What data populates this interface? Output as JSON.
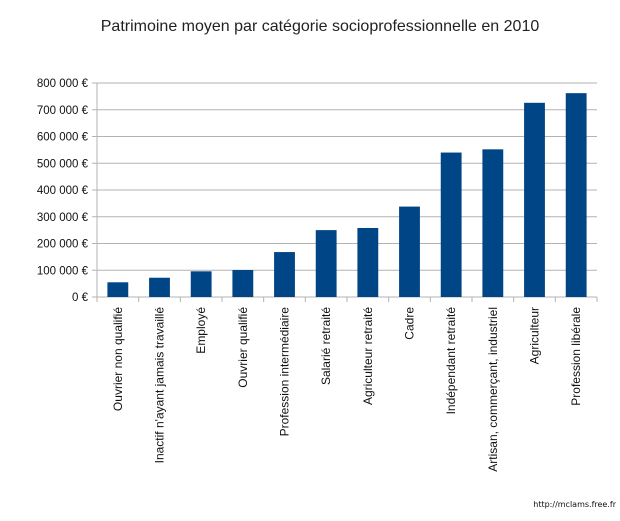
{
  "chart_data": {
    "type": "bar",
    "title": "Patrimoine moyen par catégorie socioprofessionnelle en 2010",
    "xlabel": "",
    "ylabel": "",
    "ylim": [
      0,
      800000
    ],
    "y_ticks": [
      "0 €",
      "100 000 €",
      "200 000 €",
      "300 000 €",
      "400 000 €",
      "500 000 €",
      "600 000 €",
      "700 000 €",
      "800 000 €"
    ],
    "grid": true,
    "legend": "none",
    "categories": [
      "Ouvrier non qualifié",
      "Inactif n'ayant jamais travaillé",
      "Employé",
      "Ouvrier qualifié",
      "Profession intermédiaire",
      "Salarié retraité",
      "Agriculteur retraité",
      "Cadre",
      "Indépendant retraité",
      "Artisan, commerçant, industriel",
      "Agriculteur",
      "Profession libérale"
    ],
    "values": [
      55000,
      72000,
      96000,
      101000,
      168000,
      250000,
      258000,
      338000,
      540000,
      552000,
      726000,
      762000
    ],
    "bar_color": "#004586"
  },
  "footer": "http://mclams.free.fr"
}
